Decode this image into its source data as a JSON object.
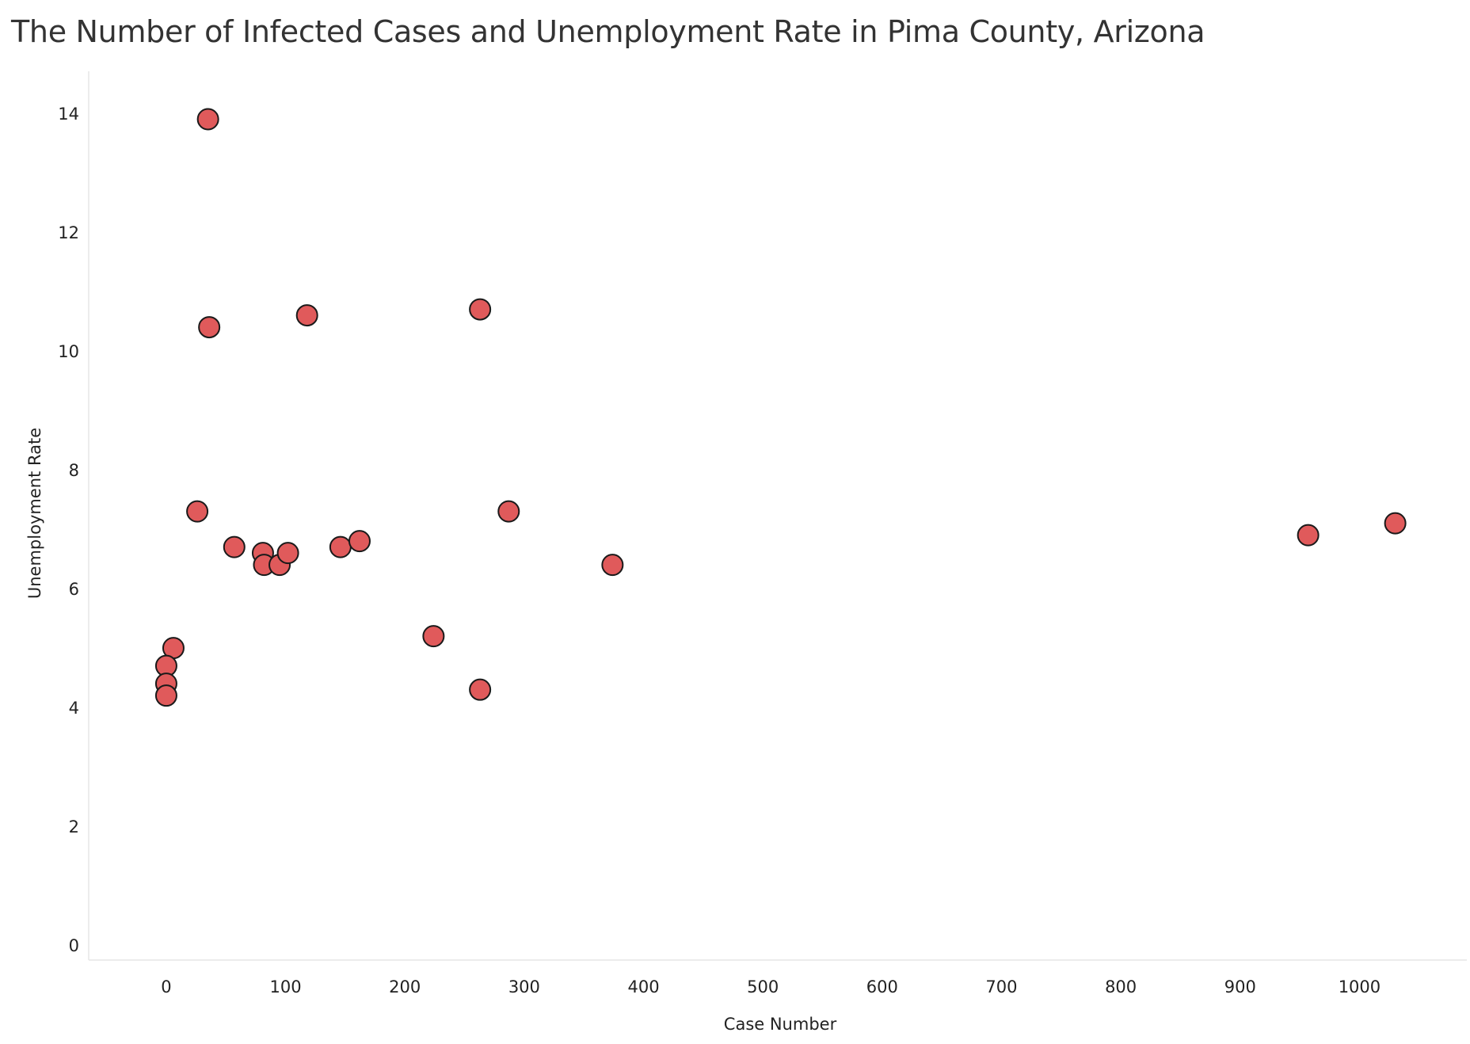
{
  "chart_data": {
    "type": "scatter",
    "title": "The Number of Infected Cases and Unemployment Rate in Pima County, Arizona",
    "xlabel": "Case Number",
    "ylabel": "Unemployment Rate",
    "xlim": [
      -65,
      1090
    ],
    "ylim": [
      -0.25,
      14.6
    ],
    "x_ticks": [
      0,
      100,
      200,
      300,
      400,
      500,
      600,
      700,
      800,
      900,
      1000
    ],
    "y_ticks": [
      0,
      2,
      4,
      6,
      8,
      10,
      12,
      14
    ],
    "grid": false,
    "legend": "none",
    "marker_color": "#e05a5b",
    "marker_edge_color": "#1a1a1a",
    "axis_line_color": "#e6e6e6",
    "points": [
      {
        "x": 35,
        "y": 13.9
      },
      {
        "x": 36,
        "y": 10.4
      },
      {
        "x": 118,
        "y": 10.6
      },
      {
        "x": 263,
        "y": 10.7
      },
      {
        "x": 26,
        "y": 7.3
      },
      {
        "x": 287,
        "y": 7.3
      },
      {
        "x": 57,
        "y": 6.7
      },
      {
        "x": 81,
        "y": 6.6
      },
      {
        "x": 82,
        "y": 6.4
      },
      {
        "x": 95,
        "y": 6.4
      },
      {
        "x": 102,
        "y": 6.6
      },
      {
        "x": 146,
        "y": 6.7
      },
      {
        "x": 162,
        "y": 6.8
      },
      {
        "x": 374,
        "y": 6.4
      },
      {
        "x": 957,
        "y": 6.9
      },
      {
        "x": 1030,
        "y": 7.1
      },
      {
        "x": 224,
        "y": 5.2
      },
      {
        "x": 263,
        "y": 4.3
      },
      {
        "x": 6,
        "y": 5.0
      },
      {
        "x": 0,
        "y": 4.7
      },
      {
        "x": 0,
        "y": 4.4
      },
      {
        "x": 0,
        "y": 4.2
      }
    ]
  }
}
